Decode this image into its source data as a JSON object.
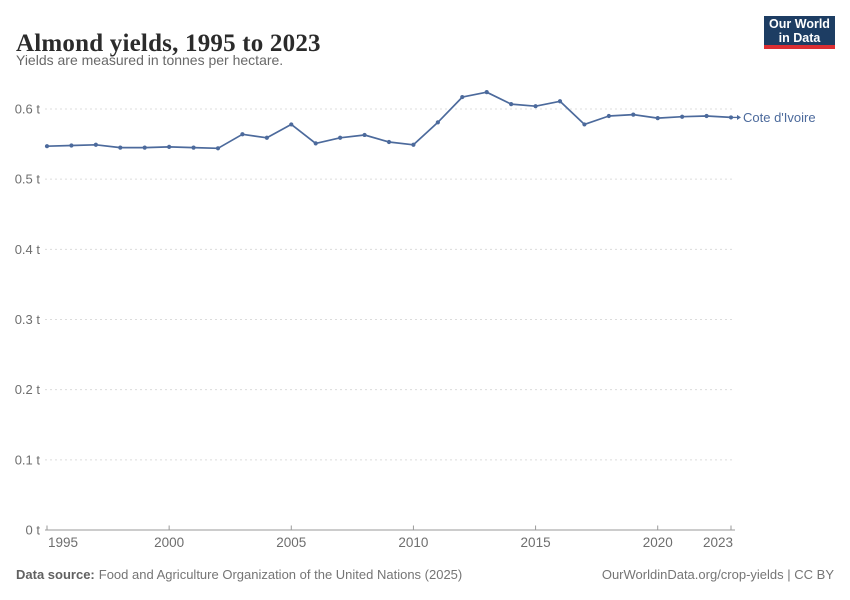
{
  "header": {
    "title": "Almond yields, 1995 to 2023",
    "subtitle": "Yields are measured in tonnes per hectare.",
    "logo": {
      "line1": "Our World",
      "line2": "in Data",
      "bg": "#1d3d63",
      "accent": "#dc2e32"
    }
  },
  "chart_data": {
    "type": "line",
    "title": "Almond yields, 1995 to 2023",
    "subtitle": "Yields are measured in tonnes per hectare.",
    "unit": "t",
    "ylabel": "tonnes per hectare",
    "xlim": [
      1995,
      2023
    ],
    "ylim": [
      0,
      0.65
    ],
    "x_ticks": [
      1995,
      2000,
      2005,
      2010,
      2015,
      2020,
      2023
    ],
    "y_ticks": [
      0,
      0.1,
      0.2,
      0.3,
      0.4,
      0.5,
      0.6
    ],
    "grid": "horizontal-dashed",
    "legend_position": "end-of-line",
    "series": [
      {
        "name": "Cote d'Ivoire",
        "color": "#4c6a9c",
        "x": [
          1995,
          1996,
          1997,
          1998,
          1999,
          2000,
          2001,
          2002,
          2003,
          2004,
          2005,
          2006,
          2007,
          2008,
          2009,
          2010,
          2011,
          2012,
          2013,
          2014,
          2015,
          2016,
          2017,
          2018,
          2019,
          2020,
          2021,
          2022,
          2023
        ],
        "values": [
          0.547,
          0.548,
          0.549,
          0.545,
          0.545,
          0.546,
          0.545,
          0.544,
          0.564,
          0.559,
          0.578,
          0.551,
          0.559,
          0.563,
          0.553,
          0.549,
          0.581,
          0.617,
          0.624,
          0.607,
          0.604,
          0.611,
          0.578,
          0.59,
          0.592,
          0.587,
          0.589,
          0.59,
          0.588
        ]
      }
    ],
    "colors": {
      "line": "#4c6a9c",
      "grid": "#dcdcdc",
      "axis": "#9a9a9a",
      "tick_text": "#6e6e6e"
    }
  },
  "footer": {
    "source_label": "Data source:",
    "source_text": "Food and Agriculture Organization of the United Nations (2025)",
    "credit": "OurWorldinData.org/crop-yields | CC BY"
  }
}
